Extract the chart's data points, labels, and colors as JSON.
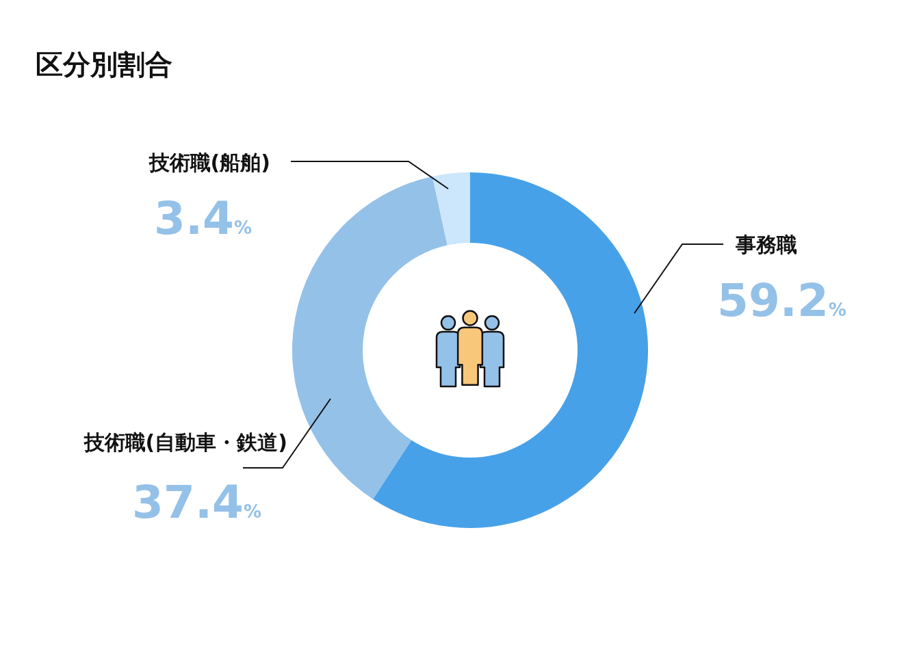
{
  "chart_data": {
    "type": "donut",
    "title": "区分別割合",
    "categories": [
      "事務職",
      "技術職(自動車・鉄道)",
      "技術職(船舶)"
    ],
    "values": [
      59.2,
      37.4,
      3.4
    ],
    "colors": [
      "#47a1e8",
      "#94c1e8",
      "#cce6fb"
    ],
    "value_labels": [
      "59.2%",
      "37.4%",
      "3.4%"
    ]
  }
}
